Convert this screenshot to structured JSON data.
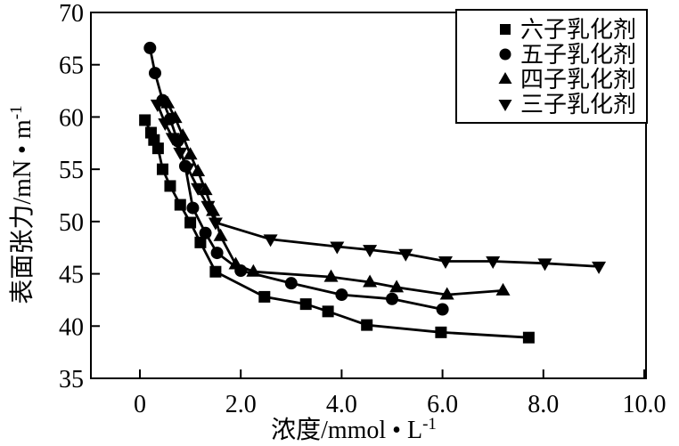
{
  "figure": {
    "background": "#ffffff",
    "ink_color": "#000000"
  },
  "chart_data": {
    "type": "line",
    "title": "",
    "xlabel_base": "浓度/mmol • L",
    "xlabel_sup": "-1",
    "ylabel_base": "表面张力/mN • m",
    "ylabel_sup": "-1",
    "xlim": [
      -1.0,
      10.05
    ],
    "ylim": [
      35,
      70
    ],
    "grid": false,
    "legend_position": "top-right",
    "x_ticks": [
      {
        "value": 0,
        "label": "0"
      },
      {
        "value": 2,
        "label": "2.0"
      },
      {
        "value": 4,
        "label": "4.0"
      },
      {
        "value": 6,
        "label": "6.0"
      },
      {
        "value": 8,
        "label": "8.0"
      },
      {
        "value": 10,
        "label": "10.0"
      }
    ],
    "y_ticks": [
      {
        "value": 35,
        "label": "35"
      },
      {
        "value": 40,
        "label": "40"
      },
      {
        "value": 45,
        "label": "45"
      },
      {
        "value": 50,
        "label": "50"
      },
      {
        "value": 55,
        "label": "55"
      },
      {
        "value": 60,
        "label": "60"
      },
      {
        "value": 65,
        "label": "65"
      },
      {
        "value": 70,
        "label": "70"
      }
    ],
    "series": [
      {
        "name": "六子乳化剂",
        "marker": "square",
        "color": "#000000",
        "x": [
          0.1,
          0.22,
          0.28,
          0.36,
          0.45,
          0.6,
          0.8,
          1.0,
          1.2,
          1.5,
          2.47,
          3.29,
          3.73,
          4.5,
          5.97,
          7.71
        ],
        "y": [
          59.7,
          58.5,
          57.8,
          57.0,
          55.0,
          53.4,
          51.6,
          49.9,
          48.0,
          45.2,
          42.8,
          42.1,
          41.4,
          40.1,
          39.4,
          38.9
        ]
      },
      {
        "name": "五子乳化剂",
        "marker": "circle",
        "color": "#000000",
        "x": [
          0.2,
          0.3,
          0.45,
          0.6,
          0.75,
          0.9,
          1.05,
          1.3,
          1.53,
          2.0,
          3.0,
          4.0,
          5.0,
          6.0
        ],
        "y": [
          66.6,
          64.2,
          61.6,
          59.8,
          57.7,
          55.3,
          51.3,
          48.9,
          47.0,
          45.3,
          44.1,
          43.0,
          42.6,
          41.6
        ]
      },
      {
        "name": "四子乳化剂",
        "marker": "triangle-up",
        "color": "#000000",
        "x": [
          0.55,
          0.7,
          0.85,
          1.0,
          1.15,
          1.3,
          1.45,
          1.6,
          1.9,
          2.25,
          3.79,
          4.56,
          5.09,
          6.09,
          7.2
        ],
        "y": [
          61.3,
          59.9,
          58.2,
          56.4,
          54.8,
          53.0,
          51.0,
          48.6,
          45.9,
          45.2,
          44.7,
          44.2,
          43.7,
          43.0,
          43.4
        ]
      },
      {
        "name": "三子乳化剂",
        "marker": "triangle-down",
        "color": "#000000",
        "x": [
          0.35,
          0.5,
          0.65,
          0.8,
          0.95,
          1.15,
          1.35,
          1.5,
          2.59,
          3.91,
          4.56,
          5.27,
          6.06,
          7.0,
          8.03,
          9.1
        ],
        "y": [
          61.2,
          59.4,
          58.0,
          56.6,
          55.1,
          53.2,
          51.5,
          49.9,
          48.3,
          47.6,
          47.3,
          46.9,
          46.2,
          46.2,
          46.0,
          45.7
        ]
      }
    ]
  }
}
